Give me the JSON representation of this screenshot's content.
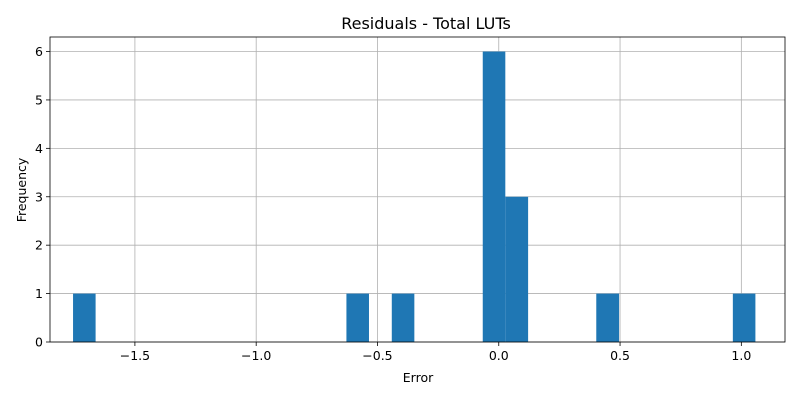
{
  "chart_data": {
    "type": "bar",
    "title": "Residuals - Total LUTs",
    "xlabel": "Error",
    "ylabel": "Frequency",
    "bar_color": "#1f77b4",
    "grid": true,
    "xlim": [
      -1.85,
      1.18
    ],
    "ylim": [
      0,
      6.3
    ],
    "xticks": [
      -1.5,
      -1.0,
      -0.5,
      0.0,
      0.5,
      1.0
    ],
    "xtick_labels": [
      "−1.5",
      "−1.0",
      "−0.5",
      "0.0",
      "0.5",
      "1.0"
    ],
    "yticks": [
      0,
      1,
      2,
      3,
      4,
      5,
      6
    ],
    "ytick_labels": [
      "0",
      "1",
      "2",
      "3",
      "4",
      "5",
      "6"
    ],
    "bins": [
      {
        "x0": -1.755,
        "x1": -1.662,
        "count": 1
      },
      {
        "x0": -0.628,
        "x1": -0.535,
        "count": 1
      },
      {
        "x0": -0.441,
        "x1": -0.348,
        "count": 1
      },
      {
        "x0": -0.066,
        "x1": 0.027,
        "count": 6
      },
      {
        "x0": 0.027,
        "x1": 0.121,
        "count": 3
      },
      {
        "x0": 0.402,
        "x1": 0.496,
        "count": 1
      },
      {
        "x0": 0.965,
        "x1": 1.058,
        "count": 1
      }
    ]
  }
}
